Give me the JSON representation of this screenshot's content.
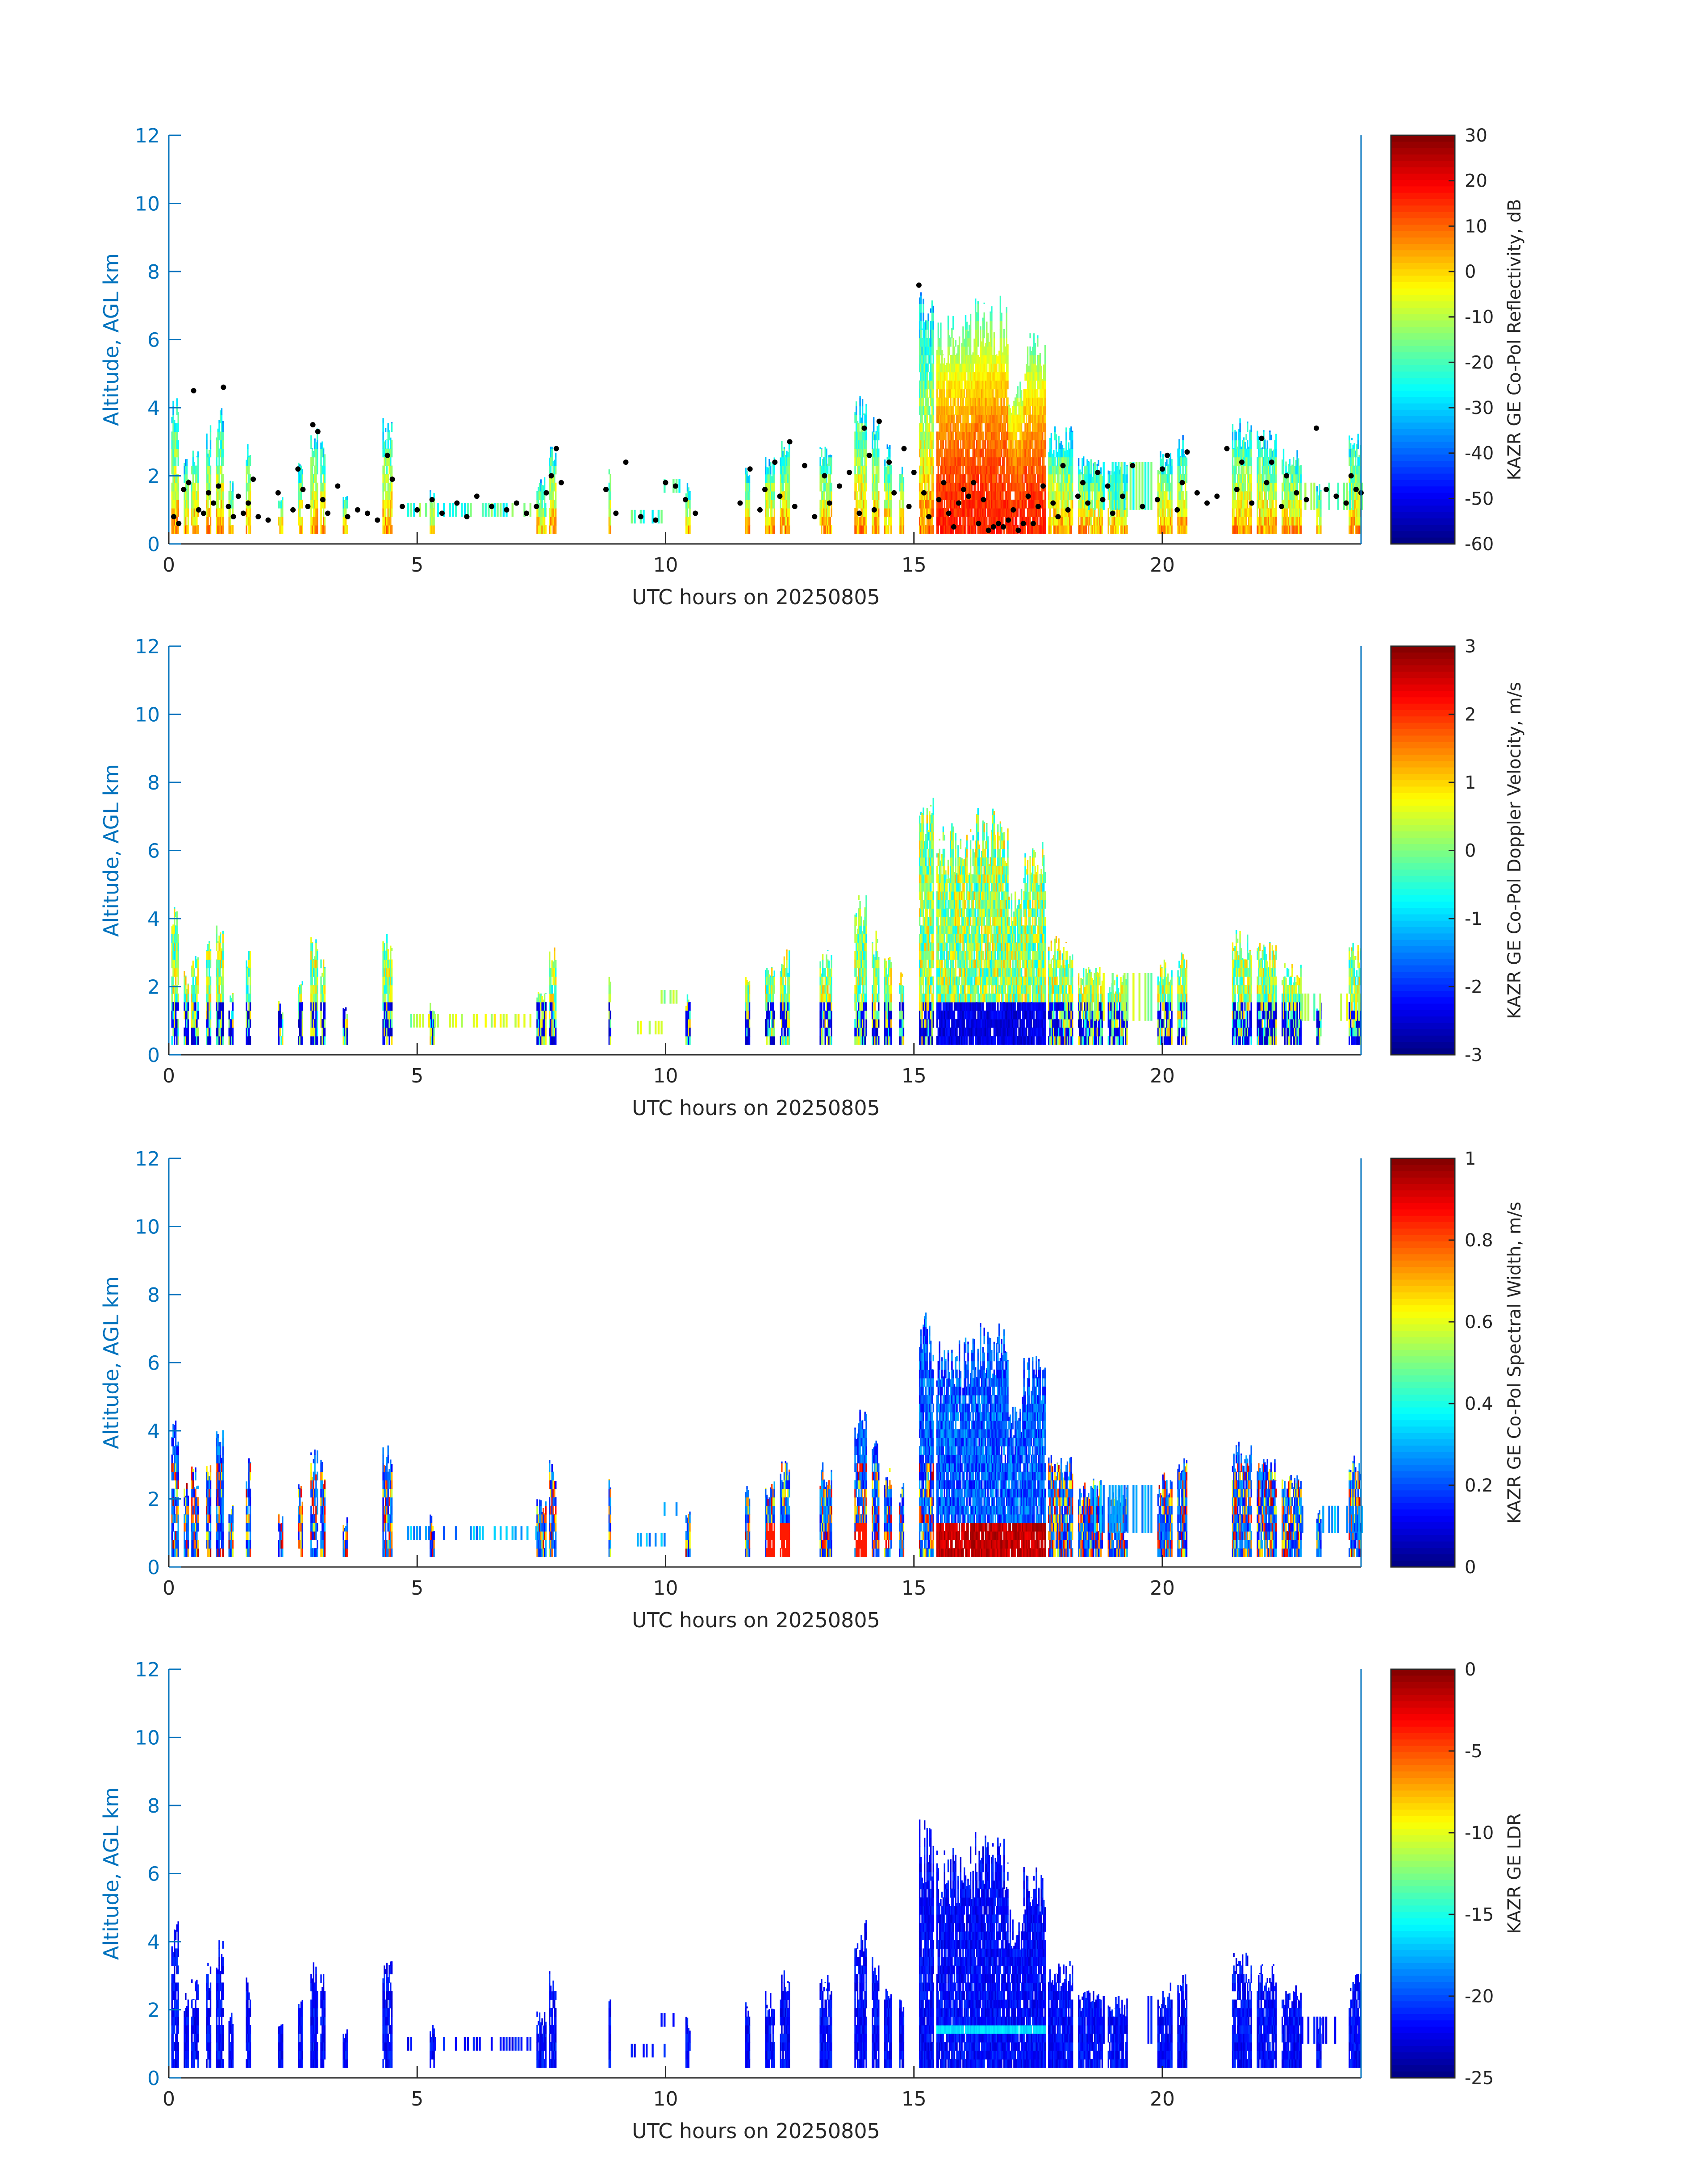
{
  "figure": {
    "background": "#ffffff",
    "axis_color": "#0072bd",
    "text_color": "#262626"
  },
  "chart_data": [
    {
      "type": "heatmap",
      "id": "reflectivity",
      "xlabel": "UTC hours on 20250805",
      "ylabel": "Altitude, AGL km",
      "xlim": [
        0,
        24
      ],
      "ylim": [
        0,
        12
      ],
      "xticks": [
        0,
        5,
        10,
        15,
        20
      ],
      "yticks": [
        0,
        2,
        4,
        6,
        8,
        10,
        12
      ],
      "colorbar": {
        "label": "KAZR GE Co-Pol Reflectivity, dB",
        "range": [
          -60,
          30
        ],
        "ticks": [
          30,
          20,
          10,
          0,
          -10,
          -20,
          -30,
          -40,
          -50,
          -60
        ]
      },
      "colormap": "jet",
      "overlay": "cloud-base points (black dots)",
      "grid": false
    },
    {
      "type": "heatmap",
      "id": "velocity",
      "xlabel": "UTC hours on 20250805",
      "ylabel": "Altitude, AGL km",
      "xlim": [
        0,
        24
      ],
      "ylim": [
        0,
        12
      ],
      "xticks": [
        0,
        5,
        10,
        15,
        20
      ],
      "yticks": [
        0,
        2,
        4,
        6,
        8,
        10,
        12
      ],
      "colorbar": {
        "label": "KAZR GE Co-Pol Doppler Velocity, m/s",
        "range": [
          -3,
          3
        ],
        "ticks": [
          3,
          2,
          1,
          0,
          -1,
          -2,
          -3
        ]
      },
      "colormap": "jet",
      "grid": false
    },
    {
      "type": "heatmap",
      "id": "width",
      "xlabel": "UTC hours on 20250805",
      "ylabel": "Altitude, AGL km",
      "xlim": [
        0,
        24
      ],
      "ylim": [
        0,
        12
      ],
      "xticks": [
        0,
        5,
        10,
        15,
        20
      ],
      "yticks": [
        0,
        2,
        4,
        6,
        8,
        10,
        12
      ],
      "colorbar": {
        "label": "KAZR GE Co-Pol Spectral Width, m/s",
        "range": [
          0,
          1
        ],
        "ticks": [
          1,
          0.8,
          0.6,
          0.4,
          0.2,
          0
        ]
      },
      "colormap": "jet",
      "grid": false
    },
    {
      "type": "heatmap",
      "id": "ldr",
      "xlabel": "UTC hours on 20250805",
      "ylabel": "Altitude, AGL km",
      "xlim": [
        0,
        24
      ],
      "ylim": [
        0,
        12
      ],
      "xticks": [
        0,
        5,
        10,
        15,
        20
      ],
      "yticks": [
        0,
        2,
        4,
        6,
        8,
        10,
        12
      ],
      "colorbar": {
        "label": "KAZR GE LDR",
        "range": [
          -25,
          0
        ],
        "ticks": [
          0,
          -5,
          -10,
          -15,
          -20,
          -25
        ]
      },
      "colormap": "jet",
      "grid": false
    }
  ],
  "echo_columns": [
    {
      "start": 0.05,
      "end": 0.2,
      "top": 4.6
    },
    {
      "start": 0.3,
      "end": 0.4,
      "top": 2.5
    },
    {
      "start": 0.45,
      "end": 0.6,
      "top": 3.0
    },
    {
      "start": 0.75,
      "end": 0.85,
      "top": 3.5
    },
    {
      "start": 0.95,
      "end": 1.1,
      "top": 4.1
    },
    {
      "start": 1.2,
      "end": 1.3,
      "top": 2.0
    },
    {
      "start": 1.55,
      "end": 1.65,
      "top": 3.2
    },
    {
      "start": 2.2,
      "end": 2.3,
      "top": 1.6
    },
    {
      "start": 2.6,
      "end": 2.7,
      "top": 2.5
    },
    {
      "start": 2.85,
      "end": 3.0,
      "top": 3.5
    },
    {
      "start": 3.05,
      "end": 3.15,
      "top": 3.2
    },
    {
      "start": 3.5,
      "end": 3.6,
      "top": 1.5
    },
    {
      "start": 4.3,
      "end": 4.5,
      "top": 3.8
    },
    {
      "start": 5.25,
      "end": 5.35,
      "top": 1.6
    },
    {
      "start": 7.4,
      "end": 7.6,
      "top": 2.0
    },
    {
      "start": 7.65,
      "end": 7.8,
      "top": 3.2
    },
    {
      "start": 8.85,
      "end": 8.9,
      "top": 2.6
    },
    {
      "start": 10.4,
      "end": 10.5,
      "top": 1.8
    },
    {
      "start": 11.6,
      "end": 11.7,
      "top": 2.4
    },
    {
      "start": 12.0,
      "end": 12.2,
      "top": 2.6
    },
    {
      "start": 12.3,
      "end": 12.5,
      "top": 3.2
    },
    {
      "start": 13.1,
      "end": 13.35,
      "top": 3.1
    },
    {
      "start": 13.8,
      "end": 14.05,
      "top": 4.7
    },
    {
      "start": 14.15,
      "end": 14.3,
      "top": 3.8
    },
    {
      "start": 14.4,
      "end": 14.55,
      "top": 3.0
    },
    {
      "start": 14.7,
      "end": 14.8,
      "top": 2.5
    },
    {
      "start": 15.1,
      "end": 15.4,
      "top": 7.6
    },
    {
      "start": 15.45,
      "end": 16.2,
      "top": 6.8
    },
    {
      "start": 16.2,
      "end": 16.9,
      "top": 7.3
    },
    {
      "start": 16.9,
      "end": 17.2,
      "top": 5.0
    },
    {
      "start": 17.2,
      "end": 17.65,
      "top": 6.3
    },
    {
      "start": 17.7,
      "end": 18.2,
      "top": 3.5
    },
    {
      "start": 18.3,
      "end": 18.8,
      "top": 2.6
    },
    {
      "start": 18.9,
      "end": 19.3,
      "top": 2.4
    },
    {
      "start": 19.9,
      "end": 20.2,
      "top": 2.8
    },
    {
      "start": 20.3,
      "end": 20.5,
      "top": 3.2
    },
    {
      "start": 21.4,
      "end": 21.8,
      "top": 3.7
    },
    {
      "start": 21.9,
      "end": 22.3,
      "top": 3.4
    },
    {
      "start": 22.4,
      "end": 22.8,
      "top": 2.8
    },
    {
      "start": 23.1,
      "end": 23.2,
      "top": 1.8
    },
    {
      "start": 23.75,
      "end": 24.0,
      "top": 3.3
    }
  ],
  "low_echo_layers": [
    {
      "start": 4.8,
      "end": 7.6,
      "base": 0.8,
      "top": 1.2
    },
    {
      "start": 9.3,
      "end": 10.0,
      "base": 0.6,
      "top": 1.0
    },
    {
      "start": 9.9,
      "end": 10.3,
      "base": 1.5,
      "top": 1.9
    },
    {
      "start": 18.5,
      "end": 19.8,
      "base": 1.0,
      "top": 2.4
    },
    {
      "start": 22.8,
      "end": 24.0,
      "base": 1.0,
      "top": 1.8
    }
  ],
  "cloud_base_points": [
    [
      0.1,
      0.8
    ],
    [
      0.2,
      0.6
    ],
    [
      0.3,
      1.6
    ],
    [
      0.4,
      1.8
    ],
    [
      0.5,
      4.5
    ],
    [
      0.6,
      1.0
    ],
    [
      0.7,
      0.9
    ],
    [
      0.8,
      1.5
    ],
    [
      0.9,
      1.2
    ],
    [
      1.0,
      1.7
    ],
    [
      1.1,
      4.6
    ],
    [
      1.2,
      1.1
    ],
    [
      1.3,
      0.8
    ],
    [
      1.4,
      1.4
    ],
    [
      1.5,
      0.9
    ],
    [
      1.6,
      1.2
    ],
    [
      1.7,
      1.9
    ],
    [
      1.8,
      0.8
    ],
    [
      2.0,
      0.7
    ],
    [
      2.2,
      1.5
    ],
    [
      2.5,
      1.0
    ],
    [
      2.6,
      2.2
    ],
    [
      2.7,
      1.6
    ],
    [
      2.8,
      1.1
    ],
    [
      2.9,
      3.5
    ],
    [
      3.0,
      3.3
    ],
    [
      3.1,
      1.3
    ],
    [
      3.2,
      0.9
    ],
    [
      3.4,
      1.7
    ],
    [
      3.6,
      0.8
    ],
    [
      3.8,
      1.0
    ],
    [
      4.0,
      0.9
    ],
    [
      4.2,
      0.7
    ],
    [
      4.4,
      2.6
    ],
    [
      4.5,
      1.9
    ],
    [
      4.7,
      1.1
    ],
    [
      5.0,
      1.0
    ],
    [
      5.3,
      1.3
    ],
    [
      5.5,
      0.9
    ],
    [
      5.8,
      1.2
    ],
    [
      6.0,
      0.8
    ],
    [
      6.2,
      1.4
    ],
    [
      6.5,
      1.1
    ],
    [
      6.8,
      1.0
    ],
    [
      7.0,
      1.2
    ],
    [
      7.2,
      0.9
    ],
    [
      7.4,
      1.1
    ],
    [
      7.6,
      1.5
    ],
    [
      7.7,
      2.0
    ],
    [
      7.8,
      2.8
    ],
    [
      7.9,
      1.8
    ],
    [
      8.8,
      1.6
    ],
    [
      9.0,
      0.9
    ],
    [
      9.2,
      2.4
    ],
    [
      9.5,
      0.8
    ],
    [
      9.8,
      0.7
    ],
    [
      10.0,
      1.8
    ],
    [
      10.2,
      1.7
    ],
    [
      10.4,
      1.3
    ],
    [
      10.6,
      0.9
    ],
    [
      11.5,
      1.2
    ],
    [
      11.7,
      2.2
    ],
    [
      11.9,
      1.0
    ],
    [
      12.0,
      1.6
    ],
    [
      12.2,
      2.4
    ],
    [
      12.3,
      1.4
    ],
    [
      12.5,
      3.0
    ],
    [
      12.6,
      1.1
    ],
    [
      12.8,
      2.3
    ],
    [
      13.0,
      0.8
    ],
    [
      13.2,
      2.0
    ],
    [
      13.3,
      1.2
    ],
    [
      13.5,
      1.7
    ],
    [
      13.7,
      2.1
    ],
    [
      13.9,
      0.9
    ],
    [
      14.0,
      3.4
    ],
    [
      14.1,
      2.6
    ],
    [
      14.2,
      1.0
    ],
    [
      14.3,
      3.6
    ],
    [
      14.5,
      2.4
    ],
    [
      14.6,
      1.5
    ],
    [
      14.8,
      2.8
    ],
    [
      14.9,
      1.1
    ],
    [
      15.0,
      2.1
    ],
    [
      15.1,
      7.6
    ],
    [
      15.2,
      1.5
    ],
    [
      15.3,
      0.8
    ],
    [
      15.5,
      1.3
    ],
    [
      15.6,
      1.8
    ],
    [
      15.7,
      0.9
    ],
    [
      15.8,
      0.5
    ],
    [
      15.9,
      1.2
    ],
    [
      16.0,
      1.6
    ],
    [
      16.1,
      1.4
    ],
    [
      16.2,
      1.8
    ],
    [
      16.3,
      0.6
    ],
    [
      16.4,
      1.3
    ],
    [
      16.5,
      0.4
    ],
    [
      16.6,
      0.5
    ],
    [
      16.7,
      0.6
    ],
    [
      16.8,
      0.5
    ],
    [
      16.9,
      0.7
    ],
    [
      17.0,
      1.0
    ],
    [
      17.1,
      0.4
    ],
    [
      17.2,
      0.6
    ],
    [
      17.3,
      1.4
    ],
    [
      17.4,
      0.6
    ],
    [
      17.5,
      1.1
    ],
    [
      17.6,
      1.7
    ],
    [
      17.8,
      1.2
    ],
    [
      17.9,
      0.8
    ],
    [
      18.0,
      2.3
    ],
    [
      18.1,
      1.0
    ],
    [
      18.3,
      1.4
    ],
    [
      18.4,
      1.8
    ],
    [
      18.5,
      1.2
    ],
    [
      18.7,
      2.1
    ],
    [
      18.8,
      1.3
    ],
    [
      18.9,
      1.7
    ],
    [
      19.0,
      0.9
    ],
    [
      19.2,
      1.4
    ],
    [
      19.4,
      2.3
    ],
    [
      19.6,
      1.1
    ],
    [
      19.9,
      1.3
    ],
    [
      20.0,
      2.2
    ],
    [
      20.1,
      2.6
    ],
    [
      20.3,
      1.0
    ],
    [
      20.4,
      1.8
    ],
    [
      20.5,
      2.7
    ],
    [
      20.7,
      1.5
    ],
    [
      20.9,
      1.2
    ],
    [
      21.1,
      1.4
    ],
    [
      21.3,
      2.8
    ],
    [
      21.5,
      1.6
    ],
    [
      21.6,
      2.4
    ],
    [
      21.8,
      1.2
    ],
    [
      22.0,
      3.1
    ],
    [
      22.1,
      1.8
    ],
    [
      22.2,
      2.4
    ],
    [
      22.4,
      1.1
    ],
    [
      22.5,
      2.0
    ],
    [
      22.7,
      1.5
    ],
    [
      22.9,
      1.3
    ],
    [
      23.1,
      3.4
    ],
    [
      23.3,
      1.6
    ],
    [
      23.5,
      1.4
    ],
    [
      23.7,
      1.2
    ],
    [
      23.8,
      2.0
    ],
    [
      23.9,
      1.6
    ],
    [
      24.0,
      1.5
    ]
  ]
}
